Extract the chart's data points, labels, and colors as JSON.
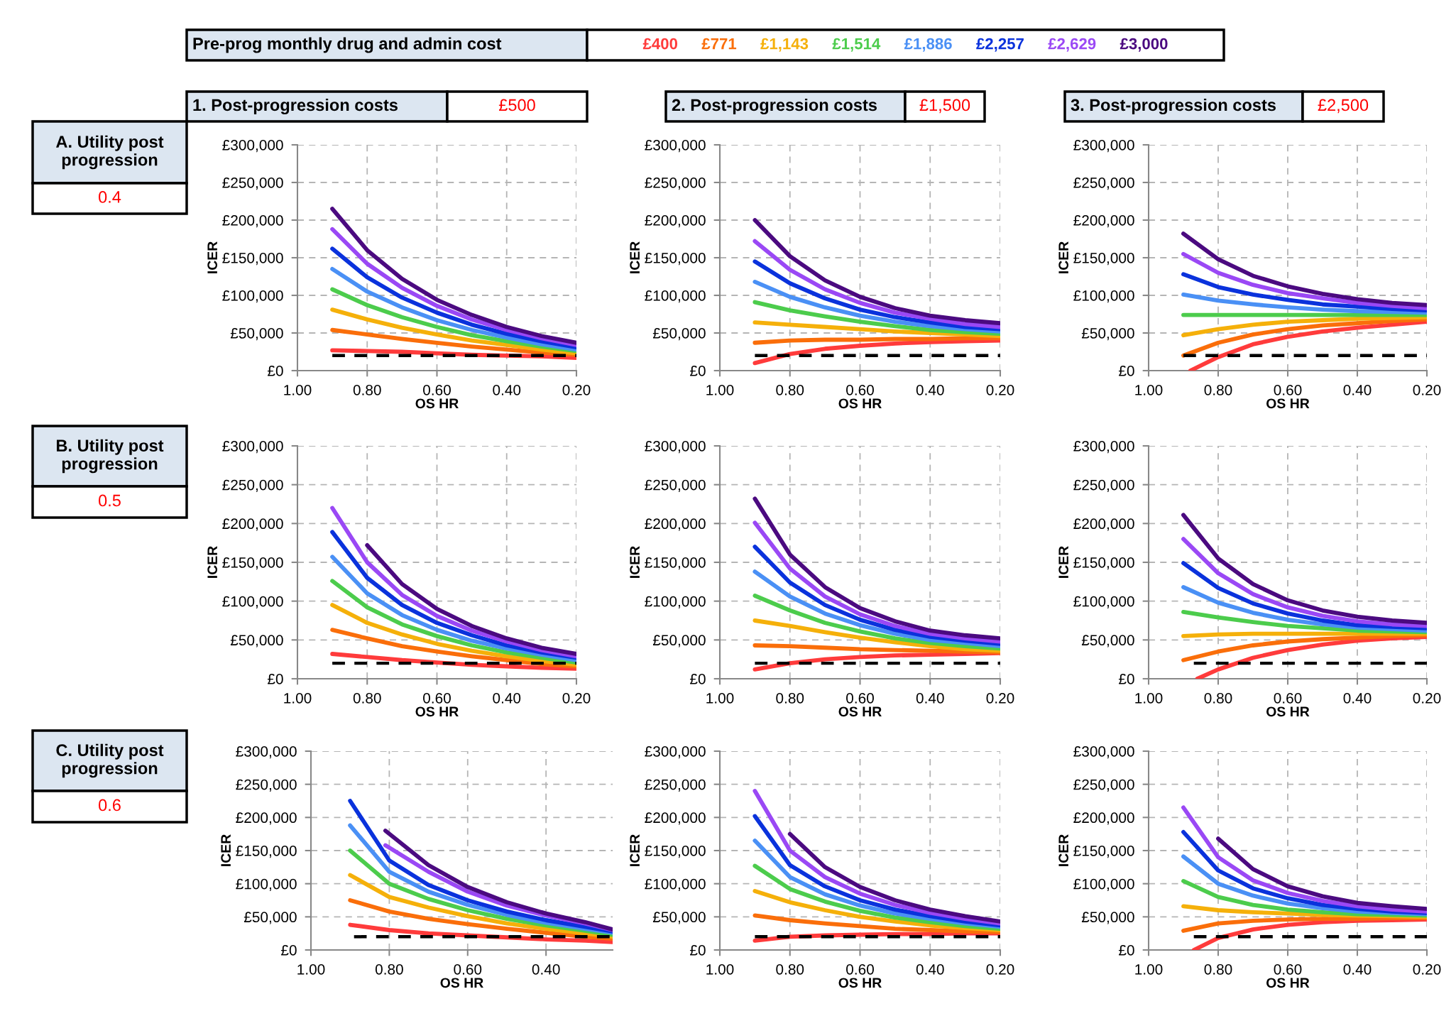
{
  "chart_data": [
    {
      "type": "line",
      "xlabel": "OS HR",
      "ylabel": "ICER",
      "legend": "top",
      "legend_title": "Pre-prog monthly drug and admin cost",
      "grid": true,
      "annotations": [
        "1. Post-progression costs",
        "£500",
        "A. Utility post progression",
        "0.4"
      ],
      "xlim": [
        1.0,
        0.2
      ],
      "xticks": [
        {
          "value": 1.0,
          "label": "1.00"
        },
        {
          "value": 0.8,
          "label": "0.80"
        },
        {
          "value": 0.6,
          "label": "0.60"
        },
        {
          "value": 0.4,
          "label": "0.40"
        },
        {
          "value": 0.2,
          "label": "0.20"
        }
      ],
      "ylim": [
        0,
        300000
      ],
      "yticks": [
        {
          "value": 0,
          "label": "£0"
        },
        {
          "value": 50000,
          "label": "£50,000"
        },
        {
          "value": 100000,
          "label": "£100,000"
        },
        {
          "value": 150000,
          "label": "£150,000"
        },
        {
          "value": 200000,
          "label": "£200,000"
        },
        {
          "value": 250000,
          "label": "£250,000"
        },
        {
          "value": 300000,
          "label": "£300,000"
        }
      ],
      "x": [
        0.9,
        0.8,
        0.7,
        0.6,
        0.5,
        0.4,
        0.3,
        0.2
      ],
      "series": [
        {
          "name": "£400",
          "color": "#ff3b3b",
          "values": [
            27000,
            26000,
            25000,
            23000,
            21000,
            20000,
            19000,
            17000
          ]
        },
        {
          "name": "£771",
          "color": "#fa6e0a",
          "values": [
            54000,
            48000,
            42000,
            37000,
            32000,
            28000,
            24000,
            21000
          ]
        },
        {
          "name": "£1,143",
          "color": "#f5b00a",
          "values": [
            81000,
            68000,
            57000,
            48000,
            40000,
            34000,
            28000,
            23000
          ]
        },
        {
          "name": "£1,514",
          "color": "#4ccc4c",
          "values": [
            108000,
            87000,
            71000,
            58000,
            47000,
            39000,
            32000,
            26000
          ]
        },
        {
          "name": "£1,886",
          "color": "#4a90f5",
          "values": [
            135000,
            105000,
            84000,
            67000,
            54000,
            44000,
            35000,
            28000
          ]
        },
        {
          "name": "£2,257",
          "color": "#0a32dc",
          "values": [
            162000,
            124000,
            97000,
            77000,
            61000,
            49000,
            39000,
            31000
          ]
        },
        {
          "name": "£2,629",
          "color": "#9a48f5",
          "values": [
            188000,
            142000,
            110000,
            86000,
            68000,
            54000,
            43000,
            34000
          ]
        },
        {
          "name": "£3,000",
          "color": "#4b0a80",
          "values": [
            215000,
            160000,
            122000,
            94000,
            74000,
            58000,
            46000,
            37000
          ]
        },
        {
          "color": "#000000",
          "line_style": "dashed",
          "x": [
            0.9,
            0.2
          ],
          "values": [
            20000,
            20000
          ]
        }
      ]
    },
    {
      "type": "line",
      "xlabel": "OS HR",
      "ylabel": "ICER",
      "grid": true,
      "annotations": [
        "2. Post-progression costs",
        "£1,500"
      ],
      "xlim": [
        1.0,
        0.2
      ],
      "xticks": [
        {
          "value": 1.0,
          "label": "1.00"
        },
        {
          "value": 0.8,
          "label": "0.80"
        },
        {
          "value": 0.6,
          "label": "0.60"
        },
        {
          "value": 0.4,
          "label": "0.40"
        },
        {
          "value": 0.2,
          "label": "0.20"
        }
      ],
      "ylim": [
        0,
        300000
      ],
      "yticks": [
        {
          "value": 0,
          "label": "£0"
        },
        {
          "value": 50000,
          "label": "£50,000"
        },
        {
          "value": 100000,
          "label": "£100,000"
        },
        {
          "value": 150000,
          "label": "£150,000"
        },
        {
          "value": 200000,
          "label": "£200,000"
        },
        {
          "value": 250000,
          "label": "£250,000"
        },
        {
          "value": 300000,
          "label": "£300,000"
        }
      ],
      "x": [
        0.9,
        0.8,
        0.7,
        0.6,
        0.5,
        0.4,
        0.3,
        0.2
      ],
      "series": [
        {
          "color": "#ff3b3b",
          "values": [
            10000,
            22000,
            29000,
            33000,
            36000,
            38000,
            39000,
            40000
          ]
        },
        {
          "color": "#fa6e0a",
          "values": [
            37000,
            40000,
            41000,
            41000,
            42000,
            42000,
            43000,
            43000
          ]
        },
        {
          "color": "#f5b00a",
          "values": [
            64000,
            61000,
            58000,
            55000,
            52000,
            50000,
            48000,
            46000
          ]
        },
        {
          "color": "#4ccc4c",
          "values": [
            91000,
            80000,
            72000,
            65000,
            59000,
            54000,
            51000,
            49000
          ]
        },
        {
          "color": "#4a90f5",
          "values": [
            118000,
            98000,
            84000,
            73000,
            65000,
            59000,
            55000,
            52000
          ]
        },
        {
          "color": "#0a32dc",
          "values": [
            145000,
            116000,
            96000,
            81000,
            71000,
            64000,
            58000,
            55000
          ]
        },
        {
          "color": "#9a48f5",
          "values": [
            172000,
            134000,
            108000,
            90000,
            77000,
            69000,
            62000,
            58000
          ]
        },
        {
          "color": "#4b0a80",
          "values": [
            200000,
            152000,
            120000,
            98000,
            83000,
            73000,
            67000,
            63000
          ]
        },
        {
          "color": "#000000",
          "line_style": "dashed",
          "x": [
            0.9,
            0.2
          ],
          "values": [
            20000,
            20000
          ]
        }
      ]
    },
    {
      "type": "line",
      "xlabel": "OS HR",
      "ylabel": "ICER",
      "grid": true,
      "annotations": [
        "3. Post-progression costs",
        "£2,500"
      ],
      "xlim": [
        1.0,
        0.2
      ],
      "xticks": [
        {
          "value": 1.0,
          "label": "1.00"
        },
        {
          "value": 0.8,
          "label": "0.80"
        },
        {
          "value": 0.6,
          "label": "0.60"
        },
        {
          "value": 0.4,
          "label": "0.40"
        },
        {
          "value": 0.2,
          "label": "0.20"
        }
      ],
      "ylim": [
        0,
        300000
      ],
      "yticks": [
        {
          "value": 0,
          "label": "£0"
        },
        {
          "value": 50000,
          "label": "£50,000"
        },
        {
          "value": 100000,
          "label": "£100,000"
        },
        {
          "value": 150000,
          "label": "£150,000"
        },
        {
          "value": 200000,
          "label": "£200,000"
        },
        {
          "value": 250000,
          "label": "£250,000"
        },
        {
          "value": 300000,
          "label": "£300,000"
        }
      ],
      "x": [
        0.9,
        0.8,
        0.7,
        0.6,
        0.5,
        0.4,
        0.3,
        0.2
      ],
      "series": [
        {
          "color": "#ff3b3b",
          "x": [
            0.88,
            0.8,
            0.7,
            0.6,
            0.5,
            0.4,
            0.3,
            0.2
          ],
          "values": [
            0,
            18000,
            35000,
            45000,
            52000,
            57000,
            61000,
            65000
          ]
        },
        {
          "color": "#fa6e0a",
          "values": [
            20000,
            37000,
            48000,
            55000,
            60000,
            63000,
            66000,
            68000
          ]
        },
        {
          "color": "#f5b00a",
          "values": [
            47000,
            55000,
            61000,
            65000,
            67000,
            69000,
            70000,
            71000
          ]
        },
        {
          "color": "#4ccc4c",
          "values": [
            74000,
            74000,
            74000,
            74000,
            74000,
            74000,
            74000,
            74000
          ]
        },
        {
          "color": "#4a90f5",
          "values": [
            101000,
            93000,
            88000,
            84000,
            81000,
            79000,
            78000,
            77000
          ]
        },
        {
          "color": "#0a32dc",
          "values": [
            128000,
            111000,
            101000,
            94000,
            88000,
            85000,
            82000,
            80000
          ]
        },
        {
          "color": "#9a48f5",
          "values": [
            155000,
            130000,
            114000,
            103000,
            96000,
            90000,
            86000,
            83000
          ]
        },
        {
          "color": "#4b0a80",
          "values": [
            182000,
            148000,
            126000,
            112000,
            102000,
            95000,
            90000,
            87000
          ]
        },
        {
          "color": "#000000",
          "line_style": "dashed",
          "x": [
            0.9,
            0.2
          ],
          "values": [
            20000,
            20000
          ]
        }
      ]
    },
    {
      "type": "line",
      "xlabel": "OS HR",
      "ylabel": "ICER",
      "grid": true,
      "annotations": [
        "B. Utility post progression",
        "0.5"
      ],
      "xlim": [
        1.0,
        0.2
      ],
      "xticks": [
        {
          "value": 1.0,
          "label": "1.00"
        },
        {
          "value": 0.8,
          "label": "0.80"
        },
        {
          "value": 0.6,
          "label": "0.60"
        },
        {
          "value": 0.4,
          "label": "0.40"
        },
        {
          "value": 0.2,
          "label": "0.20"
        }
      ],
      "ylim": [
        0,
        300000
      ],
      "yticks": [
        {
          "value": 0,
          "label": "£0"
        },
        {
          "value": 50000,
          "label": "£50,000"
        },
        {
          "value": 100000,
          "label": "£100,000"
        },
        {
          "value": 150000,
          "label": "£150,000"
        },
        {
          "value": 200000,
          "label": "£200,000"
        },
        {
          "value": 250000,
          "label": "£250,000"
        },
        {
          "value": 300000,
          "label": "£300,000"
        }
      ],
      "x": [
        0.9,
        0.8,
        0.7,
        0.6,
        0.5,
        0.4,
        0.3,
        0.2
      ],
      "series": [
        {
          "color": "#ff3b3b",
          "values": [
            32000,
            28000,
            24000,
            21000,
            18000,
            16000,
            14000,
            13000
          ]
        },
        {
          "color": "#fa6e0a",
          "values": [
            63000,
            52000,
            42000,
            35000,
            29000,
            24000,
            19000,
            16000
          ]
        },
        {
          "color": "#f5b00a",
          "values": [
            95000,
            72000,
            57000,
            45000,
            36000,
            29000,
            23000,
            18000
          ]
        },
        {
          "color": "#4ccc4c",
          "values": [
            126000,
            92000,
            70000,
            55000,
            43000,
            34000,
            27000,
            21000
          ]
        },
        {
          "color": "#4a90f5",
          "values": [
            157000,
            110000,
            82000,
            63000,
            49000,
            39000,
            31000,
            24000
          ]
        },
        {
          "color": "#0a32dc",
          "values": [
            189000,
            130000,
            95000,
            72000,
            56000,
            43000,
            34000,
            27000
          ]
        },
        {
          "color": "#9a48f5",
          "values": [
            220000,
            150000,
            108000,
            81000,
            62000,
            48000,
            37000,
            29000
          ]
        },
        {
          "color": "#4b0a80",
          "x": [
            0.8,
            0.7,
            0.6,
            0.5,
            0.4,
            0.3,
            0.2
          ],
          "values": [
            172000,
            122000,
            90000,
            68000,
            52000,
            40000,
            32000
          ]
        },
        {
          "color": "#000000",
          "line_style": "dashed",
          "x": [
            0.9,
            0.2
          ],
          "values": [
            20000,
            20000
          ]
        }
      ]
    },
    {
      "type": "line",
      "xlabel": "OS HR",
      "ylabel": "ICER",
      "grid": true,
      "xlim": [
        1.0,
        0.2
      ],
      "xticks": [
        {
          "value": 1.0,
          "label": "1.00"
        },
        {
          "value": 0.8,
          "label": "0.80"
        },
        {
          "value": 0.6,
          "label": "0.60"
        },
        {
          "value": 0.4,
          "label": "0.40"
        },
        {
          "value": 0.2,
          "label": "0.20"
        }
      ],
      "ylim": [
        0,
        300000
      ],
      "yticks": [
        {
          "value": 0,
          "label": "£0"
        },
        {
          "value": 50000,
          "label": "£50,000"
        },
        {
          "value": 100000,
          "label": "£100,000"
        },
        {
          "value": 150000,
          "label": "£150,000"
        },
        {
          "value": 200000,
          "label": "£200,000"
        },
        {
          "value": 250000,
          "label": "£250,000"
        },
        {
          "value": 300000,
          "label": "£300,000"
        }
      ],
      "x": [
        0.9,
        0.8,
        0.7,
        0.6,
        0.5,
        0.4,
        0.3,
        0.2
      ],
      "series": [
        {
          "color": "#ff3b3b",
          "values": [
            12000,
            20000,
            25000,
            28000,
            30000,
            31000,
            32000,
            33000
          ]
        },
        {
          "color": "#fa6e0a",
          "values": [
            43000,
            42000,
            40000,
            38000,
            37000,
            36000,
            35000,
            34000
          ]
        },
        {
          "color": "#f5b00a",
          "values": [
            75000,
            68000,
            60000,
            53000,
            47000,
            42000,
            38000,
            36000
          ]
        },
        {
          "color": "#4ccc4c",
          "values": [
            107000,
            88000,
            72000,
            61000,
            52000,
            46000,
            42000,
            39000
          ]
        },
        {
          "color": "#4a90f5",
          "values": [
            138000,
            106000,
            84000,
            69000,
            58000,
            50000,
            46000,
            42000
          ]
        },
        {
          "color": "#0a32dc",
          "values": [
            170000,
            124000,
            95000,
            76000,
            63000,
            54000,
            49000,
            45000
          ]
        },
        {
          "color": "#9a48f5",
          "values": [
            201000,
            142000,
            106000,
            83000,
            68000,
            58000,
            52000,
            48000
          ]
        },
        {
          "color": "#4b0a80",
          "values": [
            232000,
            160000,
            118000,
            91000,
            74000,
            62000,
            56000,
            52000
          ]
        },
        {
          "color": "#000000",
          "line_style": "dashed",
          "x": [
            0.9,
            0.2
          ],
          "values": [
            20000,
            20000
          ]
        }
      ]
    },
    {
      "type": "line",
      "xlabel": "OS HR",
      "ylabel": "ICER",
      "grid": true,
      "xlim": [
        1.0,
        0.2
      ],
      "xticks": [
        {
          "value": 1.0,
          "label": "1.00"
        },
        {
          "value": 0.8,
          "label": "0.80"
        },
        {
          "value": 0.6,
          "label": "0.60"
        },
        {
          "value": 0.4,
          "label": "0.40"
        },
        {
          "value": 0.2,
          "label": "0.20"
        }
      ],
      "ylim": [
        0,
        300000
      ],
      "yticks": [
        {
          "value": 0,
          "label": "£0"
        },
        {
          "value": 50000,
          "label": "£50,000"
        },
        {
          "value": 100000,
          "label": "£100,000"
        },
        {
          "value": 150000,
          "label": "£150,000"
        },
        {
          "value": 200000,
          "label": "£200,000"
        },
        {
          "value": 250000,
          "label": "£250,000"
        },
        {
          "value": 300000,
          "label": "£300,000"
        }
      ],
      "x": [
        0.9,
        0.8,
        0.7,
        0.6,
        0.5,
        0.4,
        0.3,
        0.2
      ],
      "series": [
        {
          "color": "#ff3b3b",
          "x": [
            0.86,
            0.8,
            0.7,
            0.6,
            0.5,
            0.4,
            0.3,
            0.2
          ],
          "values": [
            0,
            12000,
            27000,
            37000,
            44000,
            49000,
            52000,
            54000
          ]
        },
        {
          "color": "#fa6e0a",
          "values": [
            24000,
            35000,
            43000,
            48000,
            51000,
            53000,
            55000,
            56000
          ]
        },
        {
          "color": "#f5b00a",
          "values": [
            55000,
            57000,
            58000,
            58000,
            58000,
            58000,
            58000,
            58000
          ]
        },
        {
          "color": "#4ccc4c",
          "values": [
            86000,
            79000,
            73000,
            68000,
            65000,
            62000,
            61000,
            60000
          ]
        },
        {
          "color": "#4a90f5",
          "values": [
            118000,
            98000,
            85000,
            76000,
            70000,
            66000,
            64000,
            62000
          ]
        },
        {
          "color": "#0a32dc",
          "values": [
            149000,
            117000,
            97000,
            84000,
            75000,
            69000,
            67000,
            65000
          ]
        },
        {
          "color": "#9a48f5",
          "values": [
            180000,
            136000,
            109000,
            92000,
            81000,
            74000,
            70000,
            68000
          ]
        },
        {
          "color": "#4b0a80",
          "values": [
            211000,
            155000,
            122000,
            101000,
            88000,
            80000,
            75000,
            72000
          ]
        },
        {
          "color": "#000000",
          "line_style": "dashed",
          "x": [
            0.87,
            0.2
          ],
          "values": [
            20000,
            20000
          ]
        }
      ]
    },
    {
      "type": "line",
      "xlabel": "OS HR",
      "ylabel": "ICER",
      "grid": true,
      "annotations": [
        "C. Utility post progression",
        "0.6"
      ],
      "xlim": [
        1.0,
        0.23
      ],
      "xticks": [
        {
          "value": 1.0,
          "label": "1.00"
        },
        {
          "value": 0.8,
          "label": "0.80"
        },
        {
          "value": 0.6,
          "label": "0.60"
        },
        {
          "value": 0.4,
          "label": "0.40"
        }
      ],
      "ylim": [
        0,
        300000
      ],
      "yticks": [
        {
          "value": 0,
          "label": "£0"
        },
        {
          "value": 50000,
          "label": "£50,000"
        },
        {
          "value": 100000,
          "label": "£100,000"
        },
        {
          "value": 150000,
          "label": "£150,000"
        },
        {
          "value": 200000,
          "label": "£200,000"
        },
        {
          "value": 250000,
          "label": "£250,000"
        },
        {
          "value": 300000,
          "label": "£300,000"
        }
      ],
      "x": [
        0.9,
        0.8,
        0.7,
        0.6,
        0.5,
        0.4,
        0.3,
        0.23
      ],
      "series": [
        {
          "color": "#ff3b3b",
          "values": [
            38000,
            30000,
            25000,
            22000,
            19000,
            16000,
            14000,
            12000
          ]
        },
        {
          "color": "#fa6e0a",
          "values": [
            75000,
            58000,
            47000,
            39000,
            32000,
            26000,
            20000,
            17000
          ]
        },
        {
          "color": "#f5b00a",
          "values": [
            113000,
            80000,
            64000,
            51000,
            40000,
            32000,
            25000,
            20000
          ]
        },
        {
          "color": "#4ccc4c",
          "values": [
            150000,
            100000,
            77000,
            60000,
            47000,
            37000,
            29000,
            23000
          ]
        },
        {
          "color": "#4a90f5",
          "values": [
            188000,
            118000,
            88000,
            68000,
            53000,
            41000,
            32000,
            26000
          ]
        },
        {
          "color": "#0a32dc",
          "values": [
            225000,
            135000,
            98000,
            75000,
            58000,
            45000,
            35000,
            28000
          ]
        },
        {
          "color": "#9a48f5",
          "x": [
            0.81,
            0.7,
            0.6,
            0.5,
            0.4,
            0.3,
            0.23
          ],
          "values": [
            158000,
            118000,
            88000,
            67000,
            52000,
            40000,
            30000
          ]
        },
        {
          "color": "#4b0a80",
          "x": [
            0.81,
            0.7,
            0.6,
            0.5,
            0.4,
            0.3,
            0.23
          ],
          "values": [
            180000,
            128000,
            95000,
            72000,
            55000,
            42000,
            31000
          ]
        },
        {
          "color": "#000000",
          "line_style": "dashed",
          "x": [
            0.89,
            0.23
          ],
          "values": [
            20000,
            20000
          ]
        }
      ]
    },
    {
      "type": "line",
      "xlabel": "OS HR",
      "ylabel": "ICER",
      "grid": true,
      "xlim": [
        1.0,
        0.2
      ],
      "xticks": [
        {
          "value": 1.0,
          "label": "1.00"
        },
        {
          "value": 0.8,
          "label": "0.80"
        },
        {
          "value": 0.6,
          "label": "0.60"
        },
        {
          "value": 0.4,
          "label": "0.40"
        },
        {
          "value": 0.2,
          "label": "0.20"
        }
      ],
      "ylim": [
        0,
        300000
      ],
      "yticks": [
        {
          "value": 0,
          "label": "£0"
        },
        {
          "value": 50000,
          "label": "£50,000"
        },
        {
          "value": 100000,
          "label": "£100,000"
        },
        {
          "value": 150000,
          "label": "£150,000"
        },
        {
          "value": 200000,
          "label": "£200,000"
        },
        {
          "value": 250000,
          "label": "£250,000"
        },
        {
          "value": 300000,
          "label": "£300,000"
        }
      ],
      "x": [
        0.9,
        0.8,
        0.7,
        0.6,
        0.5,
        0.4,
        0.3,
        0.2
      ],
      "series": [
        {
          "color": "#ff3b3b",
          "values": [
            14000,
            20000,
            22000,
            23000,
            24000,
            24000,
            25000,
            25000
          ]
        },
        {
          "color": "#fa6e0a",
          "values": [
            52000,
            45000,
            40000,
            36000,
            32000,
            30000,
            28000,
            27000
          ]
        },
        {
          "color": "#f5b00a",
          "values": [
            89000,
            72000,
            60000,
            50000,
            43000,
            37000,
            33000,
            30000
          ]
        },
        {
          "color": "#4ccc4c",
          "values": [
            127000,
            92000,
            73000,
            59000,
            49000,
            42000,
            36000,
            32000
          ]
        },
        {
          "color": "#4a90f5",
          "values": [
            165000,
            110000,
            84000,
            67000,
            55000,
            47000,
            40000,
            35000
          ]
        },
        {
          "color": "#0a32dc",
          "values": [
            202000,
            128000,
            96000,
            75000,
            61000,
            51000,
            43000,
            37000
          ]
        },
        {
          "color": "#9a48f5",
          "values": [
            240000,
            150000,
            110000,
            85000,
            68000,
            56000,
            47000,
            40000
          ]
        },
        {
          "color": "#4b0a80",
          "x": [
            0.8,
            0.7,
            0.6,
            0.5,
            0.4,
            0.3,
            0.2
          ],
          "values": [
            175000,
            125000,
            95000,
            75000,
            61000,
            51000,
            43000
          ]
        },
        {
          "color": "#000000",
          "line_style": "dashed",
          "x": [
            0.9,
            0.2
          ],
          "values": [
            20000,
            20000
          ]
        }
      ]
    },
    {
      "type": "line",
      "xlabel": "OS HR",
      "ylabel": "ICER",
      "grid": true,
      "xlim": [
        1.0,
        0.2
      ],
      "xticks": [
        {
          "value": 1.0,
          "label": "1.00"
        },
        {
          "value": 0.8,
          "label": "0.80"
        },
        {
          "value": 0.6,
          "label": "0.60"
        },
        {
          "value": 0.4,
          "label": "0.40"
        },
        {
          "value": 0.2,
          "label": "0.20"
        }
      ],
      "ylim": [
        0,
        300000
      ],
      "yticks": [
        {
          "value": 0,
          "label": "£0"
        },
        {
          "value": 50000,
          "label": "£50,000"
        },
        {
          "value": 100000,
          "label": "£100,000"
        },
        {
          "value": 150000,
          "label": "£150,000"
        },
        {
          "value": 200000,
          "label": "£200,000"
        },
        {
          "value": 250000,
          "label": "£250,000"
        },
        {
          "value": 300000,
          "label": "£300,000"
        }
      ],
      "x": [
        0.9,
        0.8,
        0.7,
        0.6,
        0.5,
        0.4,
        0.3,
        0.2
      ],
      "series": [
        {
          "color": "#ff3b3b",
          "x": [
            0.87,
            0.8,
            0.7,
            0.6,
            0.5,
            0.4,
            0.3,
            0.2
          ],
          "values": [
            0,
            18000,
            31000,
            38000,
            42000,
            44000,
            45000,
            46000
          ]
        },
        {
          "color": "#fa6e0a",
          "values": [
            29000,
            40000,
            44000,
            46000,
            47000,
            47000,
            48000,
            48000
          ]
        },
        {
          "color": "#f5b00a",
          "values": [
            66000,
            60000,
            57000,
            55000,
            53000,
            52000,
            51000,
            50000
          ]
        },
        {
          "color": "#4ccc4c",
          "values": [
            104000,
            80000,
            68000,
            61000,
            57000,
            54000,
            53000,
            52000
          ]
        },
        {
          "color": "#4a90f5",
          "values": [
            141000,
            100000,
            82000,
            70000,
            63000,
            58000,
            56000,
            54000
          ]
        },
        {
          "color": "#0a32dc",
          "values": [
            178000,
            120000,
            93000,
            78000,
            68000,
            62000,
            58000,
            56000
          ]
        },
        {
          "color": "#9a48f5",
          "values": [
            215000,
            140000,
            105000,
            86000,
            74000,
            66000,
            61000,
            58000
          ]
        },
        {
          "color": "#4b0a80",
          "x": [
            0.8,
            0.7,
            0.6,
            0.5,
            0.4,
            0.3,
            0.2
          ],
          "values": [
            168000,
            122000,
            96000,
            81000,
            71000,
            66000,
            62000
          ]
        },
        {
          "color": "#000000",
          "line_style": "dashed",
          "x": [
            0.87,
            0.2
          ],
          "values": [
            20000,
            20000
          ]
        }
      ]
    }
  ]
}
